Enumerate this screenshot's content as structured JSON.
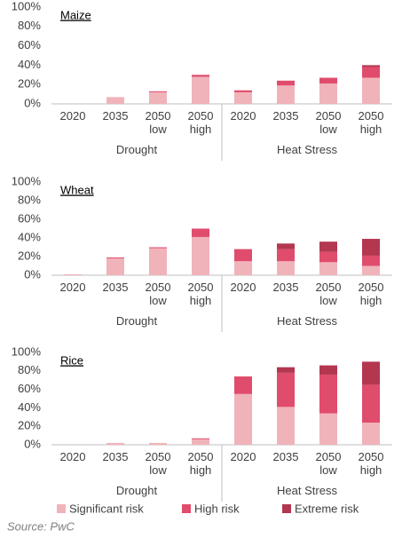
{
  "chart_data": [
    {
      "type": "bar",
      "stacked": true,
      "title": "Maize",
      "categories": [
        "2020",
        "2035",
        "2050 low",
        "2050 high",
        "2020",
        "2035",
        "2050 low",
        "2050 high"
      ],
      "groups": [
        "Drought",
        "Heat Stress"
      ],
      "series": [
        {
          "name": "Significant risk",
          "color": "#f0b3ba",
          "values": [
            0,
            7,
            12,
            28,
            12,
            19,
            21,
            27
          ]
        },
        {
          "name": "High risk",
          "color": "#e04c6c",
          "values": [
            0,
            0,
            1,
            2,
            2,
            5,
            6,
            11
          ]
        },
        {
          "name": "Extreme risk",
          "color": "#b3374f",
          "values": [
            0,
            0,
            0,
            0,
            0,
            0,
            0,
            2
          ]
        }
      ],
      "ylim": [
        0,
        100
      ],
      "yticks": [
        {
          "value": 0,
          "label": "0%"
        },
        {
          "value": 20,
          "label": "20%"
        },
        {
          "value": 40,
          "label": "40%"
        },
        {
          "value": 60,
          "label": "60%"
        },
        {
          "value": 80,
          "label": "80%"
        },
        {
          "value": 100,
          "label": "100%"
        }
      ]
    },
    {
      "type": "bar",
      "stacked": true,
      "title": "Wheat",
      "categories": [
        "2020",
        "2035",
        "2050 low",
        "2050 high",
        "2020",
        "2035",
        "2050 low",
        "2050 high"
      ],
      "groups": [
        "Drought",
        "Heat Stress"
      ],
      "series": [
        {
          "name": "Significant risk",
          "color": "#f0b3ba",
          "values": [
            1,
            18,
            29,
            41,
            15,
            15,
            14,
            10
          ]
        },
        {
          "name": "High risk",
          "color": "#e04c6c",
          "values": [
            0,
            1,
            1,
            9,
            13,
            13,
            11,
            11
          ]
        },
        {
          "name": "Extreme risk",
          "color": "#b3374f",
          "values": [
            0,
            0,
            0,
            0,
            0,
            6,
            11,
            18
          ]
        }
      ],
      "ylim": [
        0,
        100
      ],
      "yticks": [
        {
          "value": 0,
          "label": "0%"
        },
        {
          "value": 20,
          "label": "20%"
        },
        {
          "value": 40,
          "label": "40%"
        },
        {
          "value": 60,
          "label": "60%"
        },
        {
          "value": 80,
          "label": "80%"
        },
        {
          "value": 100,
          "label": "100%"
        }
      ]
    },
    {
      "type": "bar",
      "stacked": true,
      "title": "Rice",
      "categories": [
        "2020",
        "2035",
        "2050 low",
        "2050 high",
        "2020",
        "2035",
        "2050 low",
        "2050 high"
      ],
      "groups": [
        "Drought",
        "Heat Stress"
      ],
      "series": [
        {
          "name": "Significant risk",
          "color": "#f0b3ba",
          "values": [
            0,
            2,
            2,
            6,
            55,
            41,
            34,
            24
          ]
        },
        {
          "name": "High risk",
          "color": "#e04c6c",
          "values": [
            0,
            0,
            0,
            1,
            19,
            37,
            42,
            41
          ]
        },
        {
          "name": "Extreme risk",
          "color": "#b3374f",
          "values": [
            0,
            0,
            0,
            0,
            0,
            6,
            10,
            25
          ]
        }
      ],
      "ylim": [
        0,
        100
      ],
      "yticks": [
        {
          "value": 0,
          "label": "0%"
        },
        {
          "value": 20,
          "label": "20%"
        },
        {
          "value": 40,
          "label": "40%"
        },
        {
          "value": 60,
          "label": "60%"
        },
        {
          "value": 80,
          "label": "80%"
        },
        {
          "value": 100,
          "label": "100%"
        }
      ]
    }
  ],
  "source": "Source: PwC"
}
